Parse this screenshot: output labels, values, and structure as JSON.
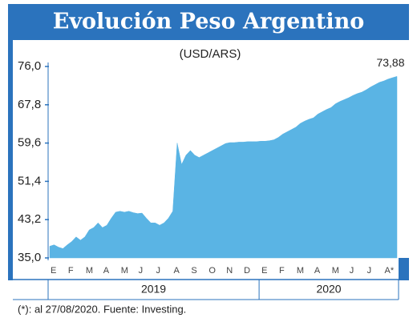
{
  "chart_data": {
    "type": "area",
    "title": "Evolución Peso Argentino",
    "subtitle": "(USD/ARS)",
    "footnote": "(*): al 27/08/2020. Fuente: Investing.",
    "end_label": "73,88",
    "color": "#5ab4e4",
    "categories": [
      "E",
      null,
      null,
      null,
      "F",
      null,
      null,
      null,
      "M",
      null,
      null,
      null,
      "A",
      null,
      null,
      null,
      "M",
      null,
      null,
      null,
      "J",
      null,
      null,
      null,
      "J",
      null,
      null,
      null,
      "A",
      null,
      null,
      null,
      "S",
      null,
      null,
      null,
      "O",
      null,
      null,
      null,
      "N",
      null,
      null,
      null,
      "D",
      null,
      null,
      null,
      "E",
      null,
      null,
      null,
      "F",
      null,
      null,
      null,
      "M",
      null,
      null,
      null,
      "A",
      null,
      null,
      null,
      "M",
      null,
      null,
      null,
      "J",
      null,
      null,
      null,
      "J",
      null,
      null,
      null,
      "A*",
      null,
      null,
      null
    ],
    "years": [
      "2019",
      "2020"
    ],
    "values": [
      37.5,
      37.8,
      37.3,
      37.0,
      37.8,
      38.5,
      39.5,
      38.8,
      39.5,
      41.0,
      41.5,
      42.5,
      41.5,
      42.0,
      43.5,
      44.8,
      45.0,
      44.8,
      45.0,
      44.7,
      44.5,
      44.6,
      43.5,
      42.5,
      42.5,
      42.0,
      42.5,
      43.5,
      45.0,
      59.6,
      55.0,
      57.0,
      58.0,
      57.0,
      56.5,
      57.0,
      57.5,
      58.0,
      58.5,
      59.0,
      59.5,
      59.7,
      59.7,
      59.8,
      59.8,
      59.9,
      59.9,
      59.9,
      60.0,
      60.0,
      60.1,
      60.3,
      60.8,
      61.5,
      62.0,
      62.5,
      63.0,
      63.8,
      64.3,
      64.7,
      65.0,
      65.8,
      66.3,
      66.8,
      67.2,
      68.0,
      68.5,
      68.9,
      69.3,
      69.8,
      70.2,
      70.5,
      71.0,
      71.6,
      72.1,
      72.6,
      72.9,
      73.3,
      73.6,
      73.88
    ],
    "ylim": [
      35,
      76
    ],
    "yticks": [
      {
        "value": 35,
        "label": "35,0"
      },
      {
        "value": 43.2,
        "label": "43,2"
      },
      {
        "value": 51.4,
        "label": "51,4"
      },
      {
        "value": 59.6,
        "label": "59,6"
      },
      {
        "value": 67.8,
        "label": "67,8"
      },
      {
        "value": 76,
        "label": "76,0"
      }
    ]
  }
}
